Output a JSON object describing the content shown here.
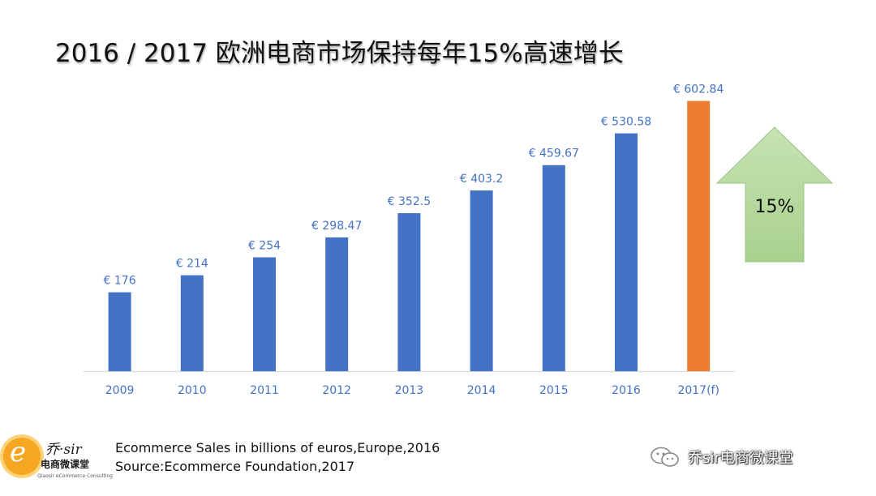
{
  "title": "2016 / 2017 欧洲电商市场保持每年15%高速增长",
  "chart_data": {
    "type": "bar",
    "title": "",
    "xlabel": "",
    "ylabel": "",
    "categories": [
      "2009",
      "2010",
      "2011",
      "2012",
      "2013",
      "2014",
      "2015",
      "2016",
      "2017(f)"
    ],
    "values": [
      176,
      214,
      254,
      298.47,
      352.5,
      403.2,
      459.67,
      530.58,
      602.84
    ],
    "data_labels": [
      "€ 176",
      "€ 214",
      "€ 254",
      "€ 298.47",
      "€ 352.5",
      "€ 403.2",
      "€ 459.67",
      "€ 530.58",
      "€ 602.84"
    ],
    "ylim": [
      0,
      640
    ],
    "grid": false,
    "legend": "none",
    "colors": {
      "actual": "#4472C4",
      "forecast": "#ED7D31",
      "label": "#4472C4",
      "tick": "#4472C4"
    },
    "annotation": {
      "text": "15%",
      "shape": "up-arrow",
      "color": "#A9D18E"
    }
  },
  "footer": {
    "line1": "Ecommerce Sales in billions of euros,Europe,2016",
    "line2": "Source:Ecommerce Foundation,2017"
  },
  "logo": {
    "letter": "e",
    "brand": "乔·sir",
    "sub": "电商微课堂",
    "en": "Qiaosir eCommerce Consulting"
  },
  "watermark": {
    "text": "乔sir电商微课堂",
    "icon": "wechat-icon"
  }
}
